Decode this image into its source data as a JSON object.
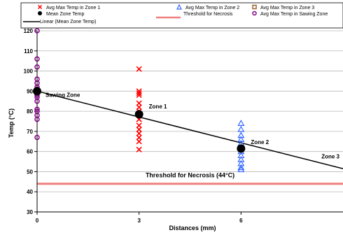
{
  "chart_data": {
    "type": "scatter",
    "xlabel": "Distances (mm)",
    "ylabel": "Temp (°C)",
    "xlim": [
      0,
      9
    ],
    "ylim": [
      30,
      120
    ],
    "x_ticks": [
      "0",
      "3",
      "6"
    ],
    "y_ticks": [
      "30",
      "40",
      "50",
      "60",
      "70",
      "80",
      "90",
      "100",
      "110",
      "120"
    ],
    "grid": "horizontal",
    "legend_position": "top",
    "legend": [
      "Avg Max Temp in Zone 1",
      "Avg Max Temp in Zone 2",
      "Avg Max Temp in Zone 3",
      "Mean Zone Temp",
      "Threshold for Necrosis",
      "Avg Max Temp in Sawing Zone",
      "Linear (Mean Zone Temp)"
    ],
    "series": [
      {
        "name": "Avg Max Temp in Zone 1",
        "marker": "x",
        "color": "#ff0000",
        "points": [
          [
            3,
            101
          ],
          [
            3,
            90
          ],
          [
            3,
            89
          ],
          [
            3,
            88
          ],
          [
            3,
            84
          ],
          [
            3,
            82
          ],
          [
            3,
            80
          ],
          [
            3,
            78
          ],
          [
            3,
            76
          ],
          [
            3,
            73
          ],
          [
            3,
            71
          ],
          [
            3,
            69
          ],
          [
            3,
            67
          ],
          [
            3,
            65
          ],
          [
            3,
            61
          ]
        ]
      },
      {
        "name": "Avg Max Temp in Zone 2",
        "marker": "triangle",
        "color": "#3366ff",
        "points": [
          [
            6,
            74
          ],
          [
            6,
            71
          ],
          [
            6,
            68
          ],
          [
            6,
            66
          ],
          [
            6,
            64
          ],
          [
            6,
            62
          ],
          [
            6,
            60
          ],
          [
            6,
            58
          ],
          [
            6,
            56
          ],
          [
            6,
            54
          ],
          [
            6,
            52
          ],
          [
            6,
            51
          ]
        ]
      },
      {
        "name": "Avg Max Temp in Zone 3",
        "marker": "square",
        "color": "#996633",
        "points": []
      },
      {
        "name": "Avg Max Temp in Sawing Zone",
        "marker": "circle-open",
        "color": "#800080",
        "points": [
          [
            0,
            120
          ],
          [
            0,
            106
          ],
          [
            0,
            102
          ],
          [
            0,
            96
          ],
          [
            0,
            94
          ],
          [
            0,
            92
          ],
          [
            0,
            91
          ],
          [
            0,
            90
          ],
          [
            0,
            89
          ],
          [
            0,
            88
          ],
          [
            0,
            87
          ],
          [
            0,
            85
          ],
          [
            0,
            81
          ],
          [
            0,
            80
          ],
          [
            0,
            78
          ],
          [
            0,
            76
          ],
          [
            0,
            67
          ]
        ]
      },
      {
        "name": "Mean Zone Temp",
        "marker": "dot",
        "color": "#000000",
        "points": [
          [
            0,
            90
          ],
          [
            3,
            78.5
          ],
          [
            6,
            61.5
          ]
        ]
      },
      {
        "name": "Linear (Mean Zone Temp)",
        "type": "line",
        "color": "#000000",
        "points": [
          [
            0,
            90
          ],
          [
            9,
            51.5
          ]
        ]
      },
      {
        "name": "Threshold for Necrosis",
        "type": "hline",
        "color": "#f08080",
        "y": 44
      }
    ],
    "annotations": [
      {
        "text": "Sawing Zone",
        "x": 0,
        "y": 90
      },
      {
        "text": "Zone 1",
        "x": 3,
        "y": 78
      },
      {
        "text": "Zone 2",
        "x": 6,
        "y": 61
      },
      {
        "text": "Zone 3",
        "x": 9,
        "y": 51
      },
      {
        "text": "Threshold for Necrosis (44°C)",
        "x": 4.5,
        "y": 44
      }
    ]
  }
}
